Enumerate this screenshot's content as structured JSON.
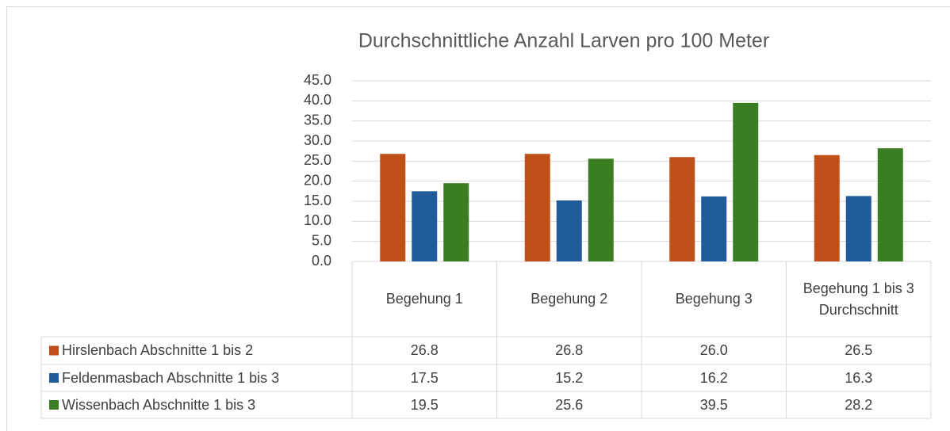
{
  "chart_data": {
    "type": "bar",
    "title": "Durchschnittliche Anzahl Larven pro 100 Meter",
    "categories": [
      "Begehung 1",
      "Begehung 2",
      "Begehung 3",
      "Begehung 1 bis 3 Durchschnitt"
    ],
    "series": [
      {
        "name": "Hirslenbach Abschnitte 1 bis 2",
        "color": "#c0501a",
        "values": [
          26.8,
          26.8,
          26.0,
          26.5
        ],
        "value_labels": [
          "26.8",
          "26.8",
          "26.0",
          "26.5"
        ]
      },
      {
        "name": "Feldenmasbach Abschnitte 1 bis 3",
        "color": "#1f5c99",
        "values": [
          17.5,
          15.2,
          16.2,
          16.3
        ],
        "value_labels": [
          "17.5",
          "15.2",
          "16.2",
          "16.3"
        ]
      },
      {
        "name": "Wissenbach Abschnitte 1 bis 3",
        "color": "#3a7d22",
        "values": [
          19.5,
          25.6,
          39.5,
          28.2
        ],
        "value_labels": [
          "19.5",
          "25.6",
          "39.5",
          "28.2"
        ]
      }
    ],
    "ylim": [
      0,
      45
    ],
    "yticks": [
      {
        "value": 0,
        "label": "0.0"
      },
      {
        "value": 5,
        "label": "5.0"
      },
      {
        "value": 10,
        "label": "10.0"
      },
      {
        "value": 15,
        "label": "15.0"
      },
      {
        "value": 20,
        "label": "20.0"
      },
      {
        "value": 25,
        "label": "25.0"
      },
      {
        "value": 30,
        "label": "30.0"
      },
      {
        "value": 35,
        "label": "35.0"
      },
      {
        "value": 40,
        "label": "40.0"
      },
      {
        "value": 45,
        "label": "45.0"
      }
    ],
    "grid": true
  }
}
